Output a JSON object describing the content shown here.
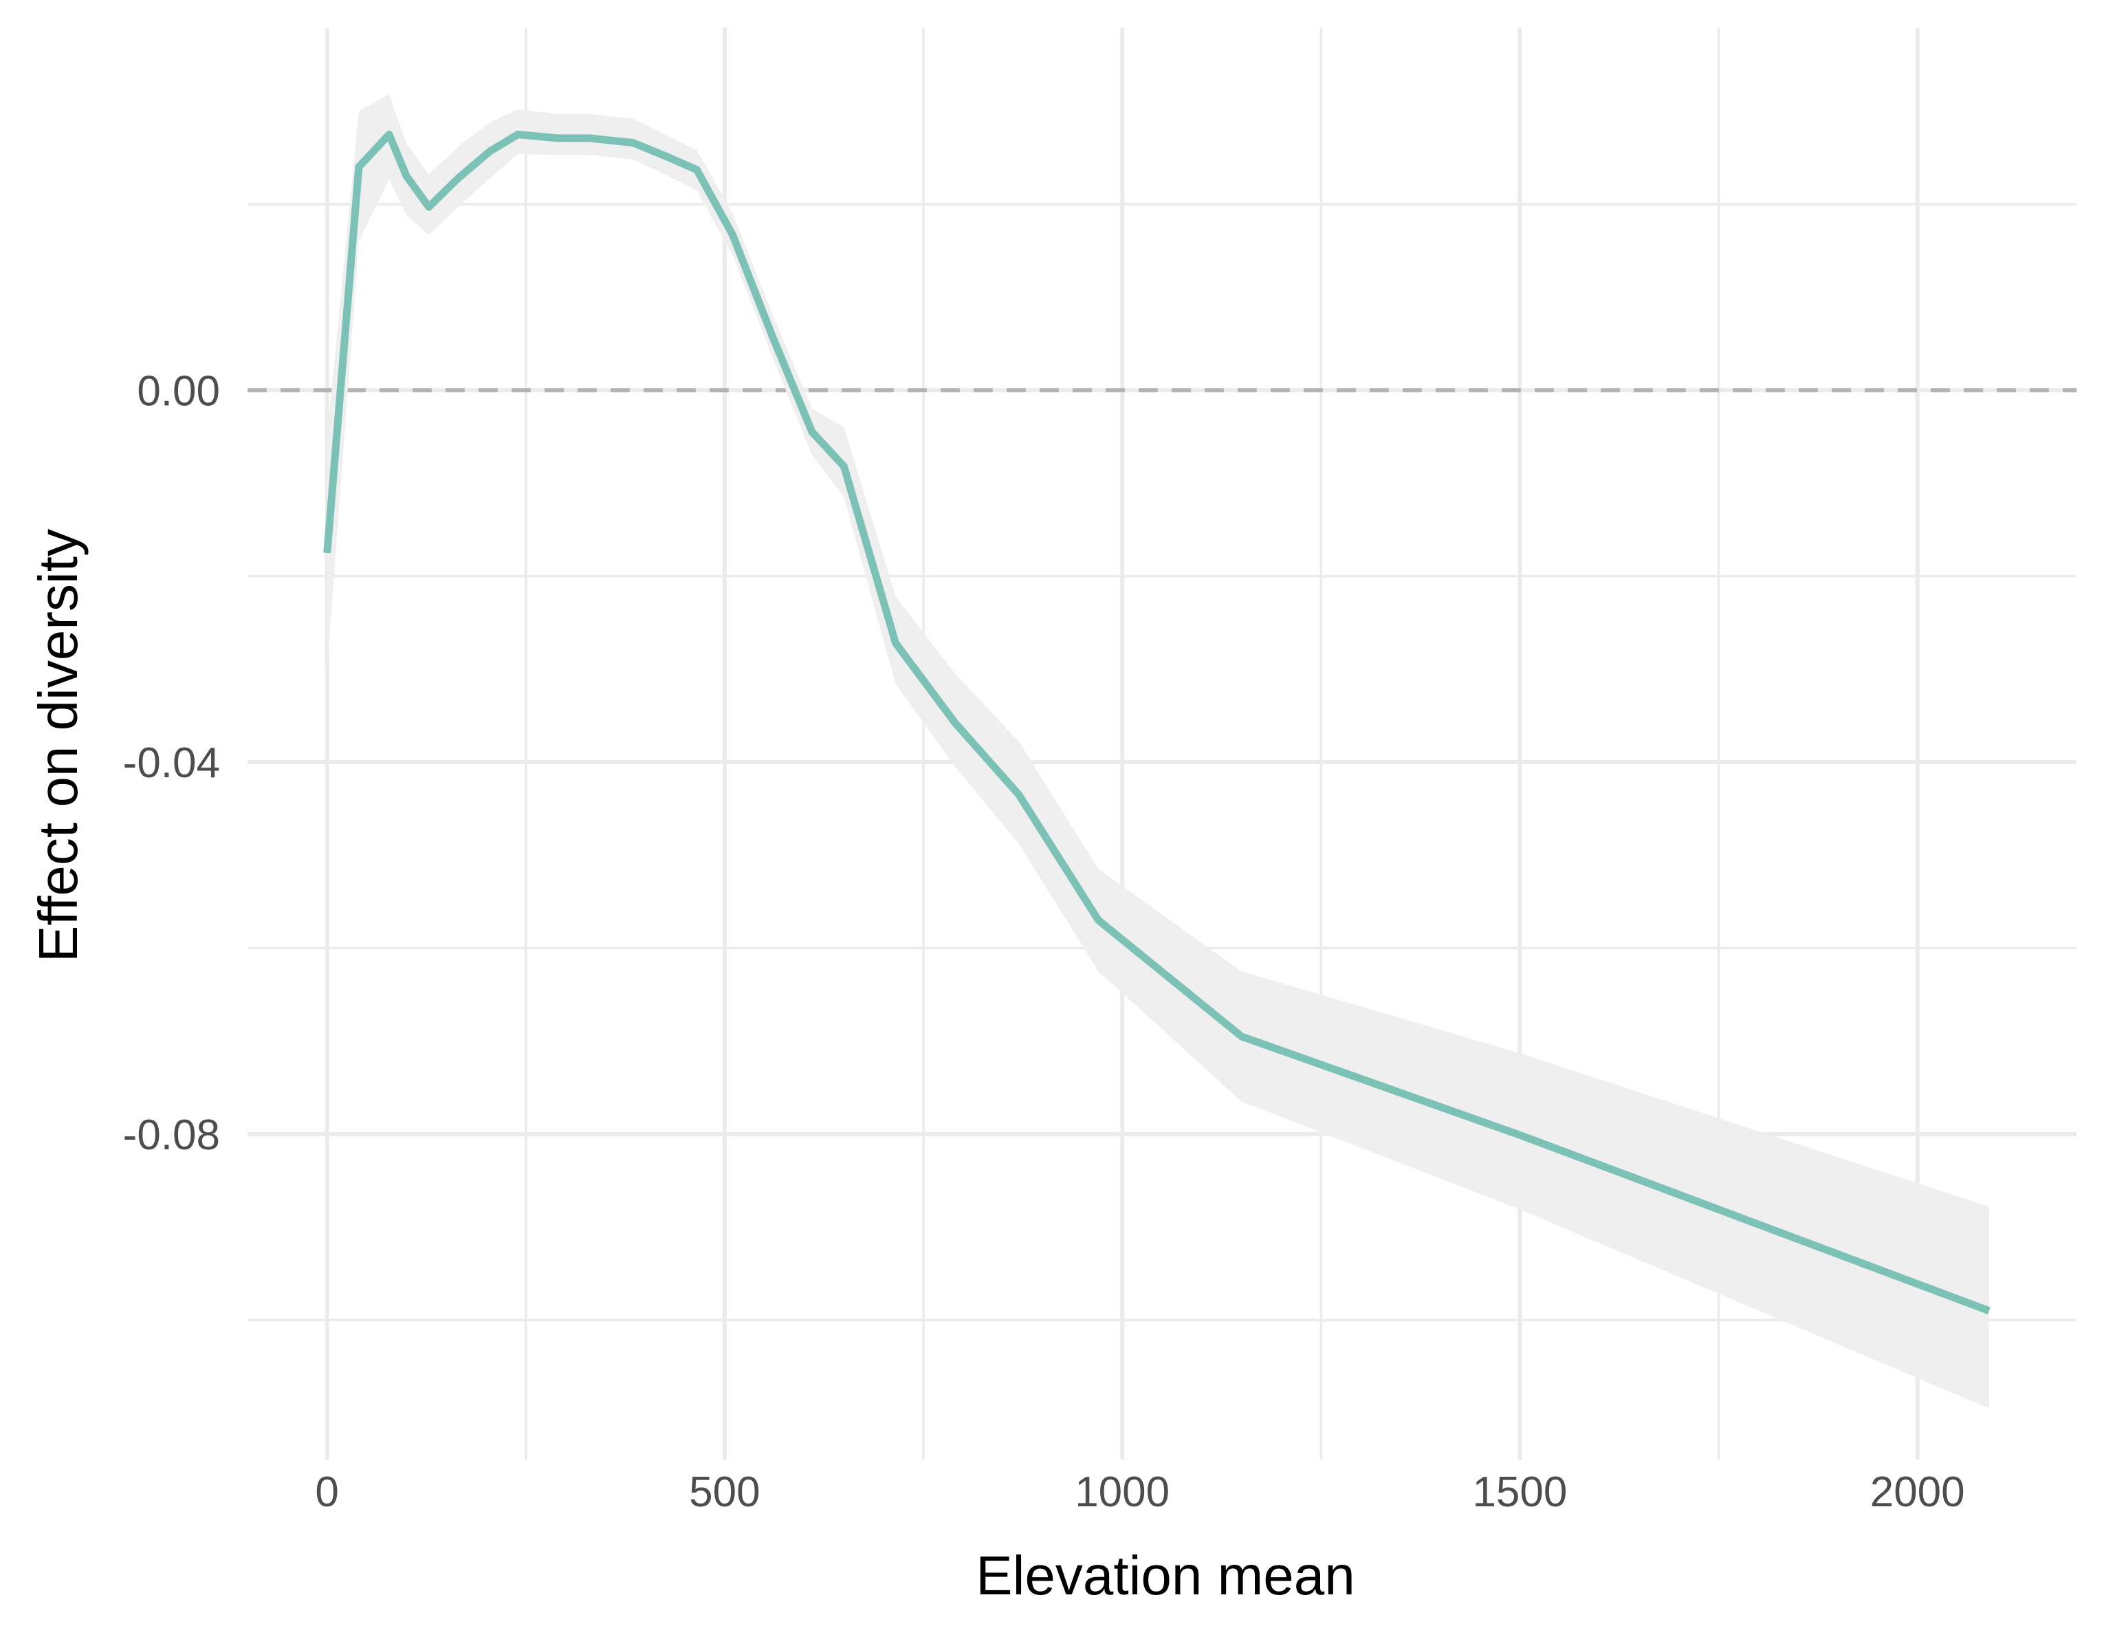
{
  "chart_data": {
    "type": "line",
    "title": "",
    "xlabel": "Elevation mean",
    "ylabel": "Effect on diversity",
    "xlim": [
      -100,
      2200
    ],
    "ylim": [
      -0.115,
      0.039
    ],
    "x_ticks": [
      0,
      500,
      1000,
      1500,
      2000
    ],
    "x_tick_labels": [
      "0",
      "500",
      "1000",
      "1500",
      "2000"
    ],
    "x_minor_ticks": [
      250,
      750,
      1250,
      1750
    ],
    "y_ticks": [
      0.0,
      -0.04,
      -0.08
    ],
    "y_tick_labels": [
      "0.00",
      "-0.04",
      "-0.08"
    ],
    "y_minor_ticks": [
      0.02,
      -0.02,
      -0.06,
      -0.1
    ],
    "grid": true,
    "legend": "none",
    "reference_line": {
      "y": 0,
      "style": "dashed",
      "color": "#b3b3b3"
    },
    "colors": {
      "line": "#7bc1b6",
      "ribbon": "#efefef",
      "grid": "#ebebeb",
      "background": "#ffffff"
    },
    "series": [
      {
        "x": [
          0,
          40,
          78,
          100,
          128,
          165,
          205,
          240,
          290,
          330,
          385,
          425,
          465,
          510,
          560,
          610,
          650,
          715,
          790,
          870,
          970,
          1150,
          1500,
          2090
        ],
        "y": [
          -0.0175,
          0.024,
          0.0275,
          0.023,
          0.0197,
          0.0228,
          0.0257,
          0.0275,
          0.0271,
          0.0271,
          0.0266,
          0.0252,
          0.0237,
          0.0167,
          0.0058,
          -0.0045,
          -0.0082,
          -0.0272,
          -0.0358,
          -0.0435,
          -0.057,
          -0.0695,
          -0.0801,
          -0.099
        ],
        "lower": [
          -0.03,
          0.016,
          0.0227,
          0.0188,
          0.0167,
          0.0197,
          0.0228,
          0.0254,
          0.0253,
          0.0253,
          0.0248,
          0.0232,
          0.0215,
          0.0145,
          0.0036,
          -0.007,
          -0.0115,
          -0.0316,
          -0.0405,
          -0.0488,
          -0.0625,
          -0.0765,
          -0.0881,
          -0.1095
        ],
        "upper": [
          -0.005,
          0.03,
          0.0318,
          0.0265,
          0.0232,
          0.0262,
          0.0288,
          0.0302,
          0.0297,
          0.0297,
          0.0292,
          0.0275,
          0.0258,
          0.019,
          0.0082,
          -0.002,
          -0.004,
          -0.0222,
          -0.0305,
          -0.0378,
          -0.0515,
          -0.0625,
          -0.0713,
          -0.0878
        ]
      }
    ]
  }
}
